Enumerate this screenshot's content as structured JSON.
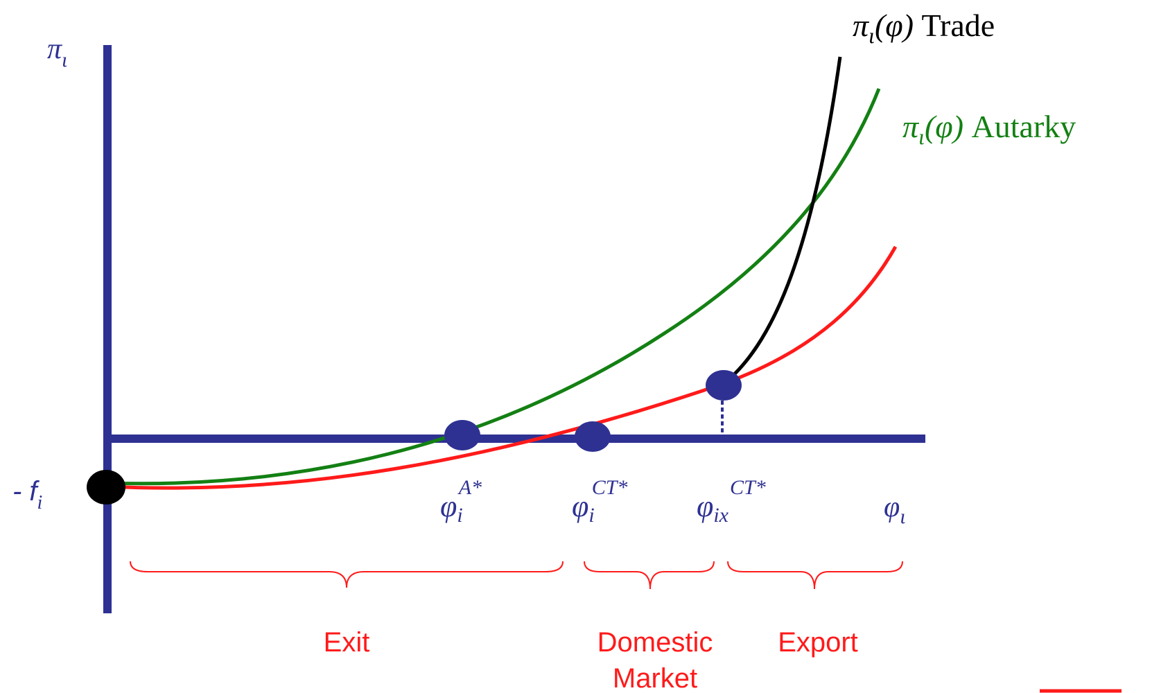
{
  "colors": {
    "axis": "#2e3192",
    "trade": "#000000",
    "autarky": "#138013",
    "domestic_profit": "#ff1a1a",
    "region_text": "#ff1a1a",
    "point": "#2e3192",
    "intercept_point": "#000000"
  },
  "labels": {
    "y_axis": "π",
    "y_axis_sub": "ι",
    "x_axis": "φ",
    "x_axis_sub": "ι",
    "intercept_minus": "- f",
    "intercept_sub": "i",
    "phi_a": {
      "base": "φ",
      "sub": "i",
      "sup": "A*"
    },
    "phi_ct": {
      "base": "φ",
      "sub": "i",
      "sup": "CT*"
    },
    "phi_ix": {
      "base": "φ",
      "sub": "ix",
      "sup": "CT*"
    }
  },
  "legend": {
    "trade": {
      "func_pi": "π",
      "func_sub": "ι",
      "func_arg": "(φ)",
      "label": " Trade"
    },
    "autarky": {
      "func_pi": "π",
      "func_sub": "ι",
      "func_arg": "(φ)",
      "label": " Autarky"
    }
  },
  "regions": {
    "exit": "Exit",
    "domestic_line1": "Domestic",
    "domestic_line2": "Market",
    "export": "Export"
  }
}
